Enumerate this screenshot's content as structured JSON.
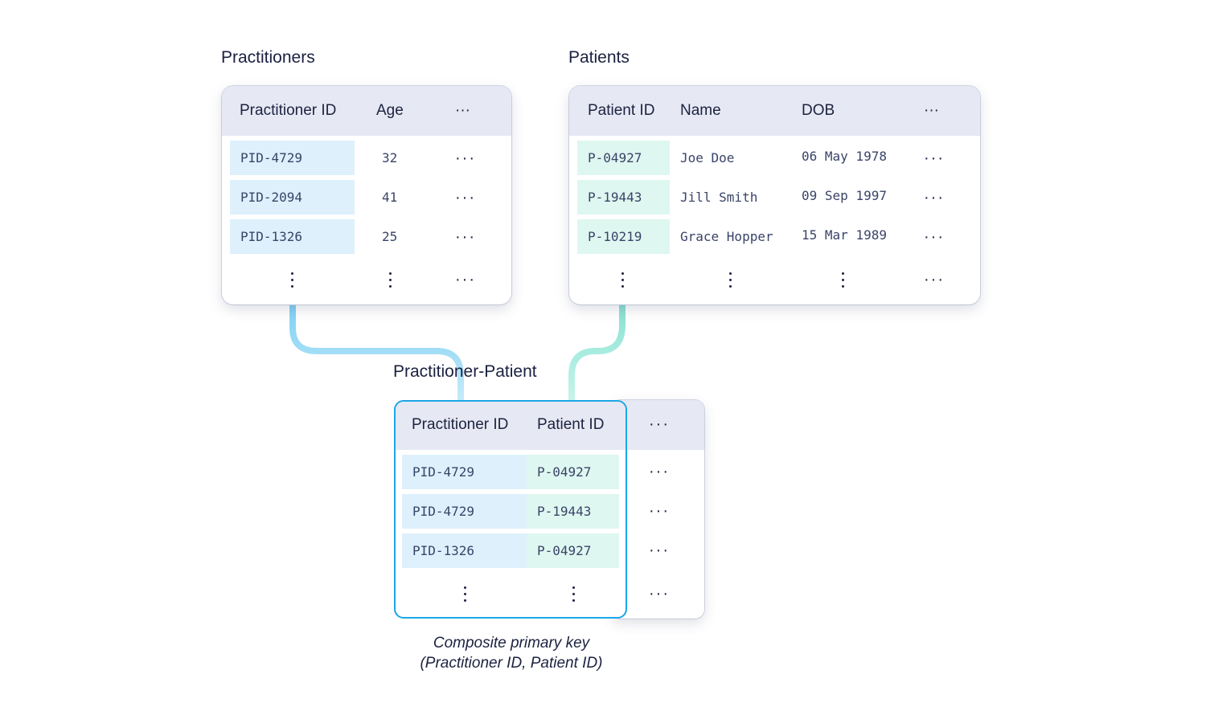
{
  "practitioners": {
    "title": "Practitioners",
    "headers": [
      "Practitioner ID",
      "Age",
      "···"
    ],
    "rows": [
      {
        "id": "PID-4729",
        "age": "32",
        "more": "···"
      },
      {
        "id": "PID-2094",
        "age": "41",
        "more": "···"
      },
      {
        "id": "PID-1326",
        "age": "25",
        "more": "···"
      }
    ],
    "more_row_dots": "···"
  },
  "patients": {
    "title": "Patients",
    "headers": [
      "Patient ID",
      "Name",
      "DOB",
      "···"
    ],
    "rows": [
      {
        "id": "P-04927",
        "name": "Joe Doe",
        "dob": "06 May 1978",
        "more": "···"
      },
      {
        "id": "P-19443",
        "name": "Jill Smith",
        "dob": "09 Sep 1997",
        "more": "···"
      },
      {
        "id": "P-10219",
        "name": "Grace Hopper",
        "dob": "15 Mar 1989",
        "more": "···"
      }
    ],
    "more_row_dots": "···"
  },
  "junction": {
    "title": "Practitioner-Patient",
    "headers": [
      "Practitioner ID",
      "Patient ID",
      "···"
    ],
    "rows": [
      {
        "practitioner_id": "PID-4729",
        "patient_id": "P-04927",
        "more": "···"
      },
      {
        "practitioner_id": "PID-4729",
        "patient_id": "P-19443",
        "more": "···"
      },
      {
        "practitioner_id": "PID-1326",
        "patient_id": "P-04927",
        "more": "···"
      }
    ],
    "more_row_dots": "···"
  },
  "caption": {
    "line1": "Composite primary key",
    "line2": "(Practitioner ID, Patient ID)"
  },
  "colors": {
    "practitioner_connector": "#8fd6f2",
    "patient_connector": "#8ee6d2",
    "junction_border": "#1aa7e6",
    "header_bg": "#e6e8f3"
  }
}
